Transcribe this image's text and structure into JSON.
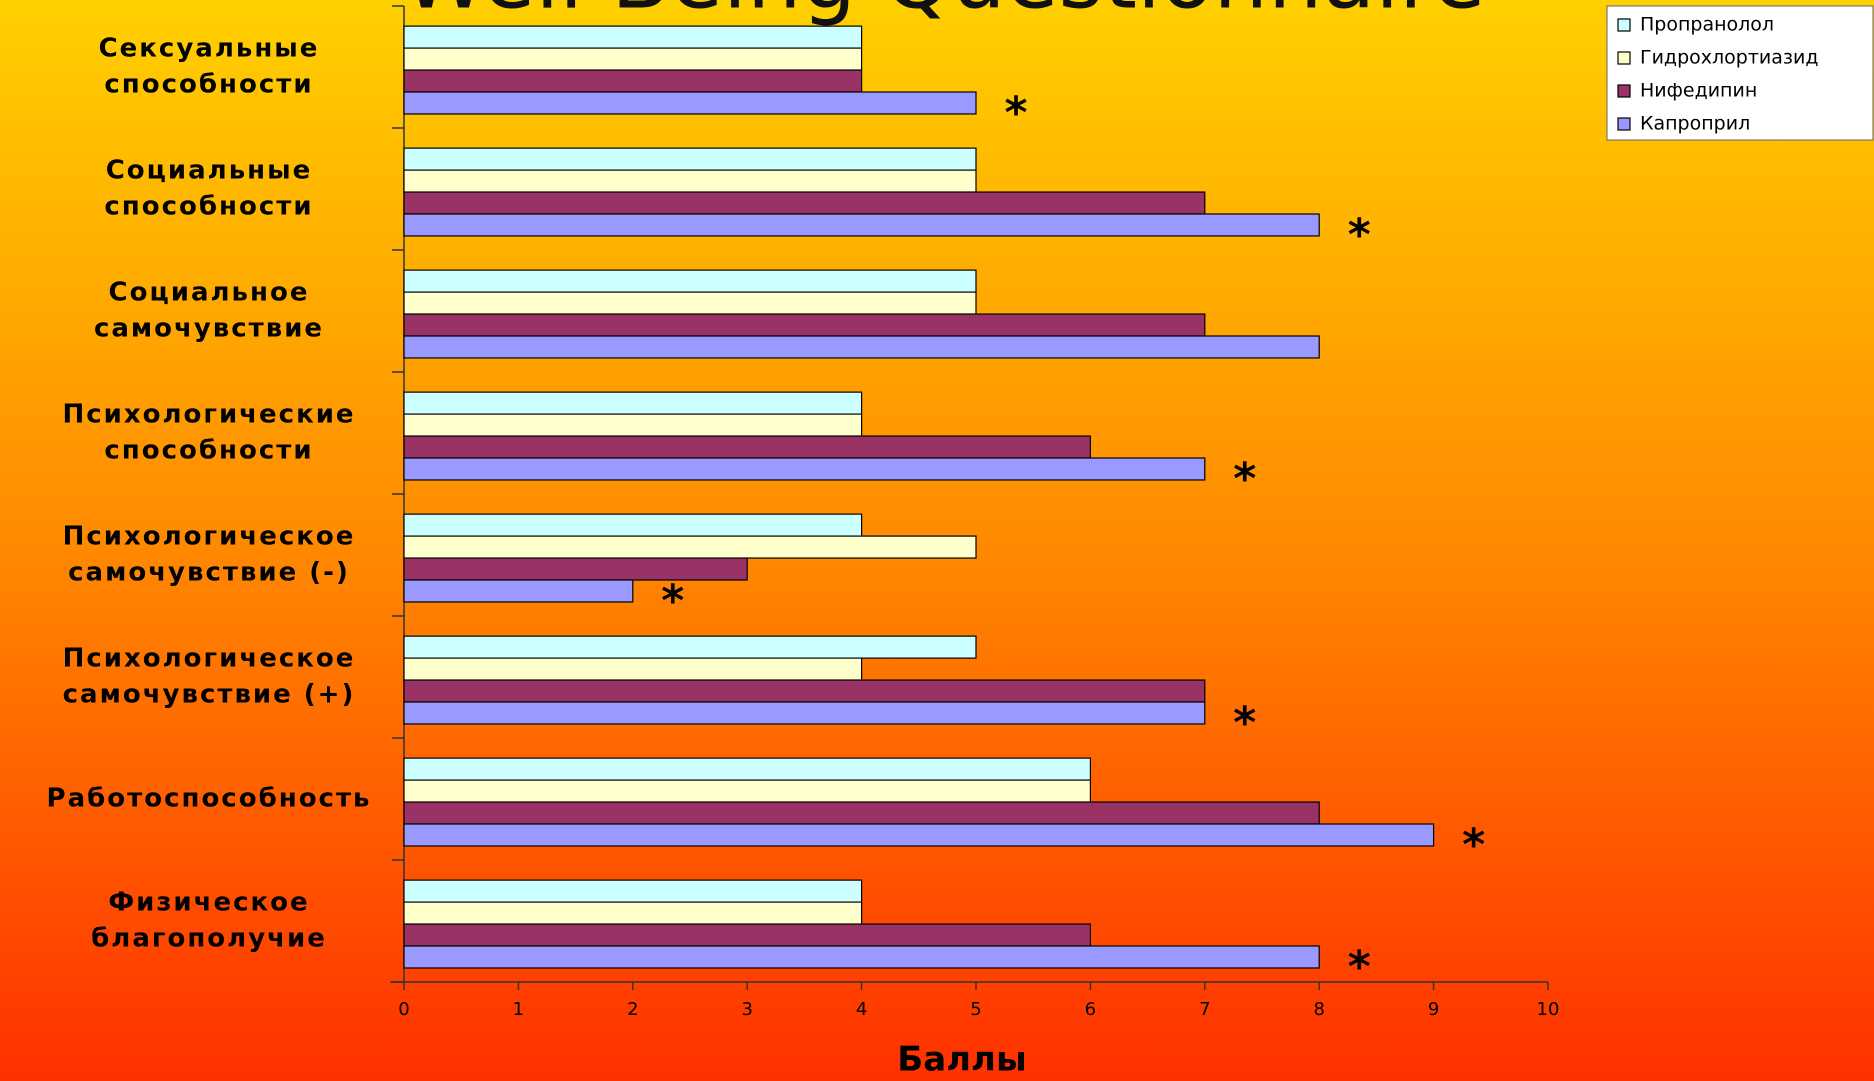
{
  "chart_data": {
    "type": "bar",
    "orientation": "horizontal",
    "title": "Well-Being Questionnaire",
    "x_label": "Баллы",
    "categories": [
      [
        "Сексуальные",
        "способности"
      ],
      [
        "Социальные",
        "способности"
      ],
      [
        "Социальное",
        "самочувствие"
      ],
      [
        "Психологические",
        "способности"
      ],
      [
        "Психологическое",
        "самочувствие (-)"
      ],
      [
        "Психологическое",
        "самочувствие (+)"
      ],
      [
        "Работоспособность"
      ],
      [
        "Физическое",
        "благополучие"
      ]
    ],
    "series": [
      {
        "name": "Пропранолол",
        "color": "#ccffff",
        "values": [
          4,
          5,
          5,
          4,
          4,
          5,
          6,
          4
        ]
      },
      {
        "name": "Гидрохлортиазид",
        "color": "#ffffcc",
        "values": [
          4,
          5,
          5,
          4,
          5,
          4,
          6,
          4
        ]
      },
      {
        "name": "Нифедипин",
        "color": "#993366",
        "values": [
          4,
          7,
          7,
          6,
          3,
          7,
          8,
          6
        ]
      },
      {
        "name": "Капроприл",
        "color": "#9999ff",
        "values": [
          5,
          8,
          8,
          7,
          2,
          7,
          9,
          8
        ]
      }
    ],
    "significance": [
      "*",
      "*",
      null,
      "*",
      "*",
      "*",
      "*",
      "*"
    ],
    "xlim": [
      0,
      10
    ],
    "xticks": [
      0,
      1,
      2,
      3,
      4,
      5,
      6,
      7,
      8,
      9,
      10
    ],
    "legend": "top-right"
  }
}
